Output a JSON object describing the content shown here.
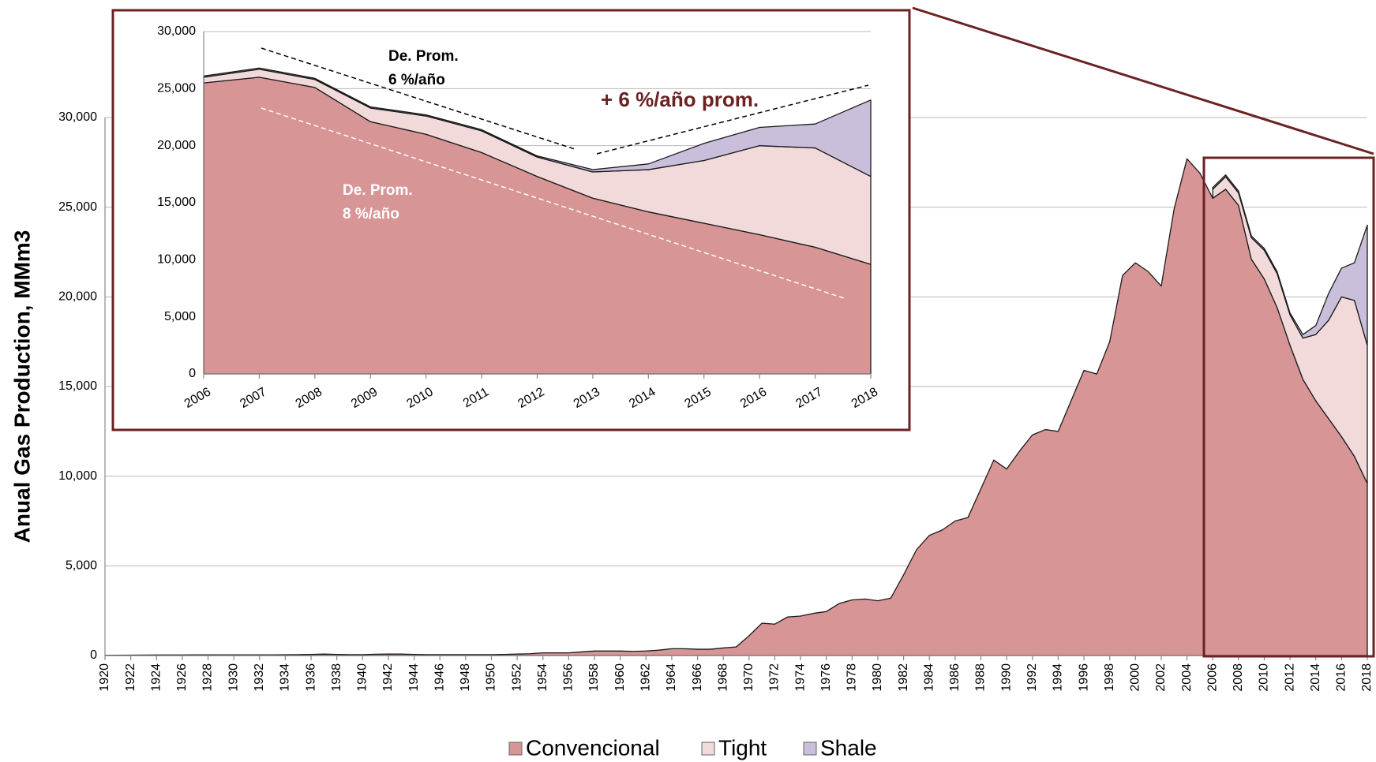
{
  "chart_data": [
    {
      "type": "area",
      "stacked": true,
      "ylabel": "Anual Gas Production, MMm3",
      "x": [
        1920,
        1921,
        1922,
        1923,
        1924,
        1925,
        1926,
        1927,
        1928,
        1929,
        1930,
        1931,
        1932,
        1933,
        1934,
        1935,
        1936,
        1937,
        1938,
        1939,
        1940,
        1941,
        1942,
        1943,
        1944,
        1945,
        1946,
        1947,
        1948,
        1949,
        1950,
        1951,
        1952,
        1953,
        1954,
        1955,
        1956,
        1957,
        1958,
        1959,
        1960,
        1961,
        1962,
        1963,
        1964,
        1965,
        1966,
        1967,
        1968,
        1969,
        1970,
        1971,
        1972,
        1973,
        1974,
        1975,
        1976,
        1977,
        1978,
        1979,
        1980,
        1981,
        1982,
        1983,
        1984,
        1985,
        1986,
        1987,
        1988,
        1989,
        1990,
        1991,
        1992,
        1993,
        1994,
        1995,
        1996,
        1997,
        1998,
        1999,
        2000,
        2001,
        2002,
        2003,
        2004,
        2005,
        2006,
        2007,
        2008,
        2009,
        2010,
        2011,
        2012,
        2013,
        2014,
        2015,
        2016,
        2017,
        2018
      ],
      "xlim": [
        1920,
        2018
      ],
      "xticks": [
        1920,
        1922,
        1924,
        1926,
        1928,
        1930,
        1932,
        1934,
        1936,
        1938,
        1940,
        1942,
        1944,
        1946,
        1948,
        1950,
        1952,
        1954,
        1956,
        1958,
        1960,
        1962,
        1964,
        1966,
        1968,
        1970,
        1972,
        1974,
        1976,
        1978,
        1980,
        1982,
        1984,
        1986,
        1988,
        1990,
        1992,
        1994,
        1996,
        1998,
        2000,
        2002,
        2004,
        2006,
        2008,
        2010,
        2012,
        2014,
        2016,
        2018
      ],
      "ylim": [
        0,
        30000
      ],
      "yticks": [
        0,
        {
          "value": 5000,
          "label": "5,000"
        },
        {
          "value": 10000,
          "label": "10,000"
        },
        {
          "value": 15000,
          "label": "15,000"
        },
        {
          "value": 20000,
          "label": "20,000"
        },
        {
          "value": 25000,
          "label": "25,000"
        },
        {
          "value": 30000,
          "label": "30,000"
        }
      ],
      "grid": true,
      "legend": "bottom",
      "series": [
        {
          "name": "Convencional",
          "color": "#d89595",
          "values": [
            10,
            15,
            20,
            25,
            30,
            30,
            30,
            35,
            35,
            40,
            40,
            40,
            40,
            40,
            45,
            50,
            60,
            80,
            60,
            50,
            50,
            70,
            80,
            80,
            60,
            50,
            50,
            50,
            50,
            50,
            50,
            60,
            80,
            100,
            150,
            150,
            150,
            200,
            250,
            250,
            250,
            230,
            250,
            300,
            380,
            380,
            350,
            350,
            420,
            480,
            1100,
            1800,
            1750,
            2150,
            2200,
            2350,
            2450,
            2900,
            3100,
            3150,
            3050,
            3200,
            4500,
            5900,
            6700,
            7000,
            7500,
            7700,
            9300,
            10900,
            10400,
            11400,
            12300,
            12600,
            12500,
            14200,
            15900,
            15700,
            17500,
            21200,
            21900,
            21400,
            20600,
            24900,
            27700,
            26900,
            25500,
            26000,
            25100,
            22100,
            21000,
            19400,
            17300,
            15400,
            14200,
            13200,
            12200,
            11100,
            9600
          ]
        },
        {
          "name": "Tight",
          "color": "#f2dada",
          "values": [
            null,
            null,
            null,
            null,
            null,
            null,
            null,
            null,
            null,
            null,
            null,
            null,
            null,
            null,
            null,
            null,
            null,
            null,
            null,
            null,
            null,
            null,
            null,
            null,
            null,
            null,
            null,
            null,
            null,
            null,
            null,
            null,
            null,
            null,
            null,
            null,
            null,
            null,
            null,
            null,
            null,
            null,
            null,
            null,
            null,
            null,
            null,
            null,
            null,
            null,
            null,
            null,
            null,
            null,
            null,
            null,
            null,
            null,
            null,
            null,
            null,
            null,
            null,
            null,
            null,
            null,
            null,
            null,
            null,
            null,
            null,
            null,
            null,
            null,
            null,
            null,
            null,
            null,
            null,
            null,
            null,
            null,
            null,
            null,
            null,
            null,
            500,
            700,
            700,
            1200,
            1600,
            1900,
            1700,
            2300,
            3700,
            5500,
            7800,
            8700,
            7700
          ]
        },
        {
          "name": "Shale",
          "color": "#c9bfdb",
          "values": [
            null,
            null,
            null,
            null,
            null,
            null,
            null,
            null,
            null,
            null,
            null,
            null,
            null,
            null,
            null,
            null,
            null,
            null,
            null,
            null,
            null,
            null,
            null,
            null,
            null,
            null,
            null,
            null,
            null,
            null,
            null,
            null,
            null,
            null,
            null,
            null,
            null,
            null,
            null,
            null,
            null,
            null,
            null,
            null,
            null,
            null,
            null,
            null,
            null,
            null,
            null,
            null,
            null,
            null,
            null,
            null,
            null,
            null,
            null,
            null,
            null,
            null,
            null,
            null,
            null,
            null,
            null,
            null,
            null,
            null,
            null,
            null,
            null,
            null,
            null,
            null,
            null,
            null,
            null,
            null,
            null,
            null,
            null,
            null,
            null,
            null,
            100,
            100,
            100,
            100,
            100,
            100,
            100,
            200,
            500,
            1500,
            1600,
            2100,
            6700
          ]
        }
      ]
    },
    {
      "type": "area",
      "stacked": true,
      "categories": [
        "2006",
        "2007",
        "2008",
        "2009",
        "2010",
        "2011",
        "2012",
        "2013",
        "2014",
        "2015",
        "2016",
        "2017",
        "2018"
      ],
      "ylim": [
        0,
        30000
      ],
      "yticks": [
        0,
        {
          "value": 5000,
          "label": "5,000"
        },
        {
          "value": 10000,
          "label": "10,000"
        },
        {
          "value": 15000,
          "label": "15,000"
        },
        {
          "value": 20000,
          "label": "20,000"
        },
        {
          "value": 25000,
          "label": "25,000"
        },
        {
          "value": 30000,
          "label": "30,000"
        }
      ],
      "grid": true,
      "series": [
        {
          "name": "Convencional",
          "color": "#d89595",
          "values": [
            25500,
            26000,
            25100,
            22100,
            21000,
            19400,
            17300,
            15400,
            14200,
            13200,
            12200,
            11100,
            9600
          ]
        },
        {
          "name": "Tight",
          "color": "#f2dada",
          "values": [
            500,
            700,
            700,
            1200,
            1600,
            1900,
            1700,
            2300,
            3700,
            5500,
            7800,
            8700,
            7700
          ]
        },
        {
          "name": "Shale",
          "color": "#c9bfdb",
          "values": [
            100,
            100,
            100,
            100,
            100,
            100,
            100,
            200,
            500,
            1500,
            1600,
            2100,
            6700
          ]
        }
      ],
      "annotations": [
        {
          "lines": [
            "De. Prom.",
            "6 %/año"
          ],
          "color": "#000000"
        },
        {
          "lines": [
            "De. Prom.",
            "8 %/año"
          ],
          "color": "#ffffff"
        },
        {
          "lines": [
            "+ 6 %/año prom."
          ],
          "color": "#6b2222"
        }
      ]
    }
  ]
}
